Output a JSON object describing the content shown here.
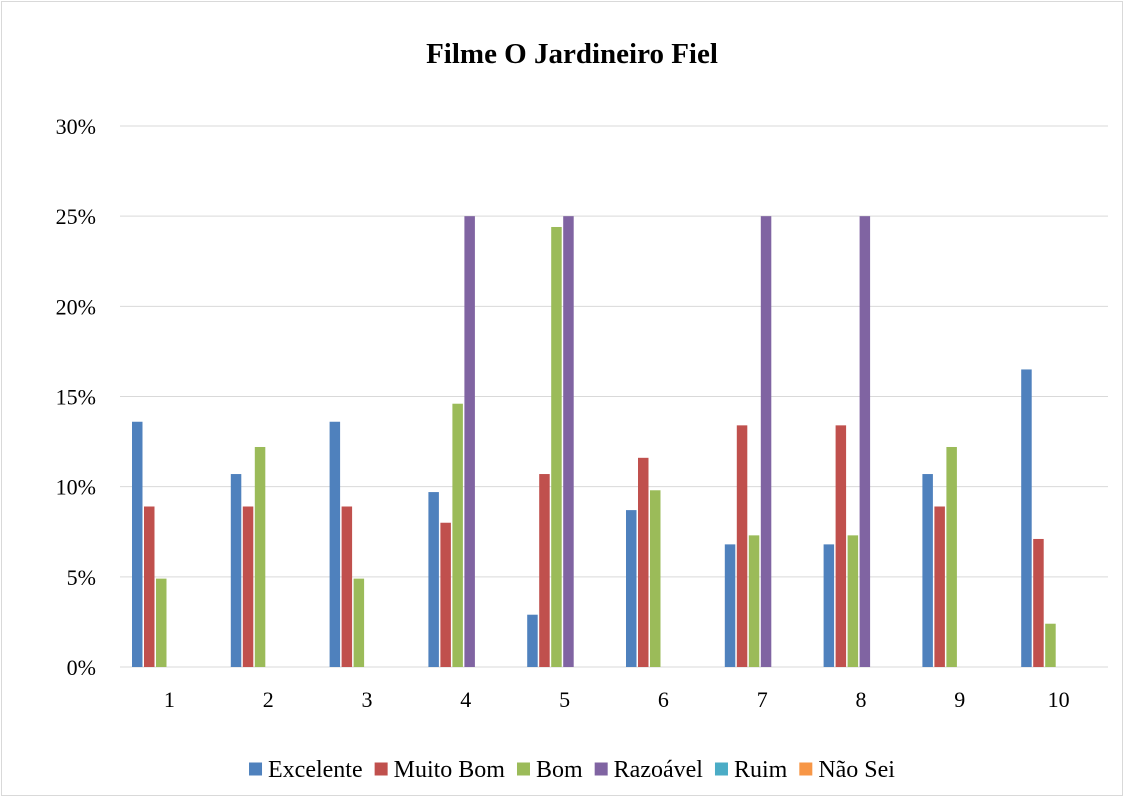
{
  "chart_data": {
    "type": "bar",
    "title": "Filme O Jardineiro Fiel",
    "xlabel": "",
    "ylabel": "",
    "categories": [
      "1",
      "2",
      "3",
      "4",
      "5",
      "6",
      "7",
      "8",
      "9",
      "10"
    ],
    "ylim": [
      0,
      30
    ],
    "y_ticks": [
      "0%",
      "5%",
      "10%",
      "15%",
      "20%",
      "25%",
      "30%"
    ],
    "y_tick_values": [
      0,
      5,
      10,
      15,
      20,
      25,
      30
    ],
    "grid": true,
    "legend_position": "bottom",
    "series": [
      {
        "name": "Excelente",
        "color": "#4f81bd",
        "values": [
          13.6,
          10.7,
          13.6,
          9.7,
          2.9,
          8.7,
          6.8,
          6.8,
          10.7,
          16.5
        ]
      },
      {
        "name": "Muito Bom",
        "color": "#c0504d",
        "values": [
          8.9,
          8.9,
          8.9,
          8.0,
          10.7,
          11.6,
          13.4,
          13.4,
          8.9,
          7.1
        ]
      },
      {
        "name": "Bom",
        "color": "#9bbb59",
        "values": [
          4.9,
          12.2,
          4.9,
          14.6,
          24.4,
          9.8,
          7.3,
          7.3,
          12.2,
          2.4
        ]
      },
      {
        "name": "Razoável",
        "color": "#8064a2",
        "values": [
          0,
          0,
          0,
          25,
          25,
          0,
          25,
          25,
          0,
          0
        ]
      },
      {
        "name": "Ruim",
        "color": "#4bacc6",
        "values": [
          0,
          0,
          0,
          0,
          0,
          0,
          0,
          0,
          0,
          0
        ]
      },
      {
        "name": "Não Sei",
        "color": "#f79646",
        "values": [
          0,
          0,
          0,
          0,
          0,
          0,
          0,
          0,
          0,
          0
        ]
      }
    ]
  }
}
